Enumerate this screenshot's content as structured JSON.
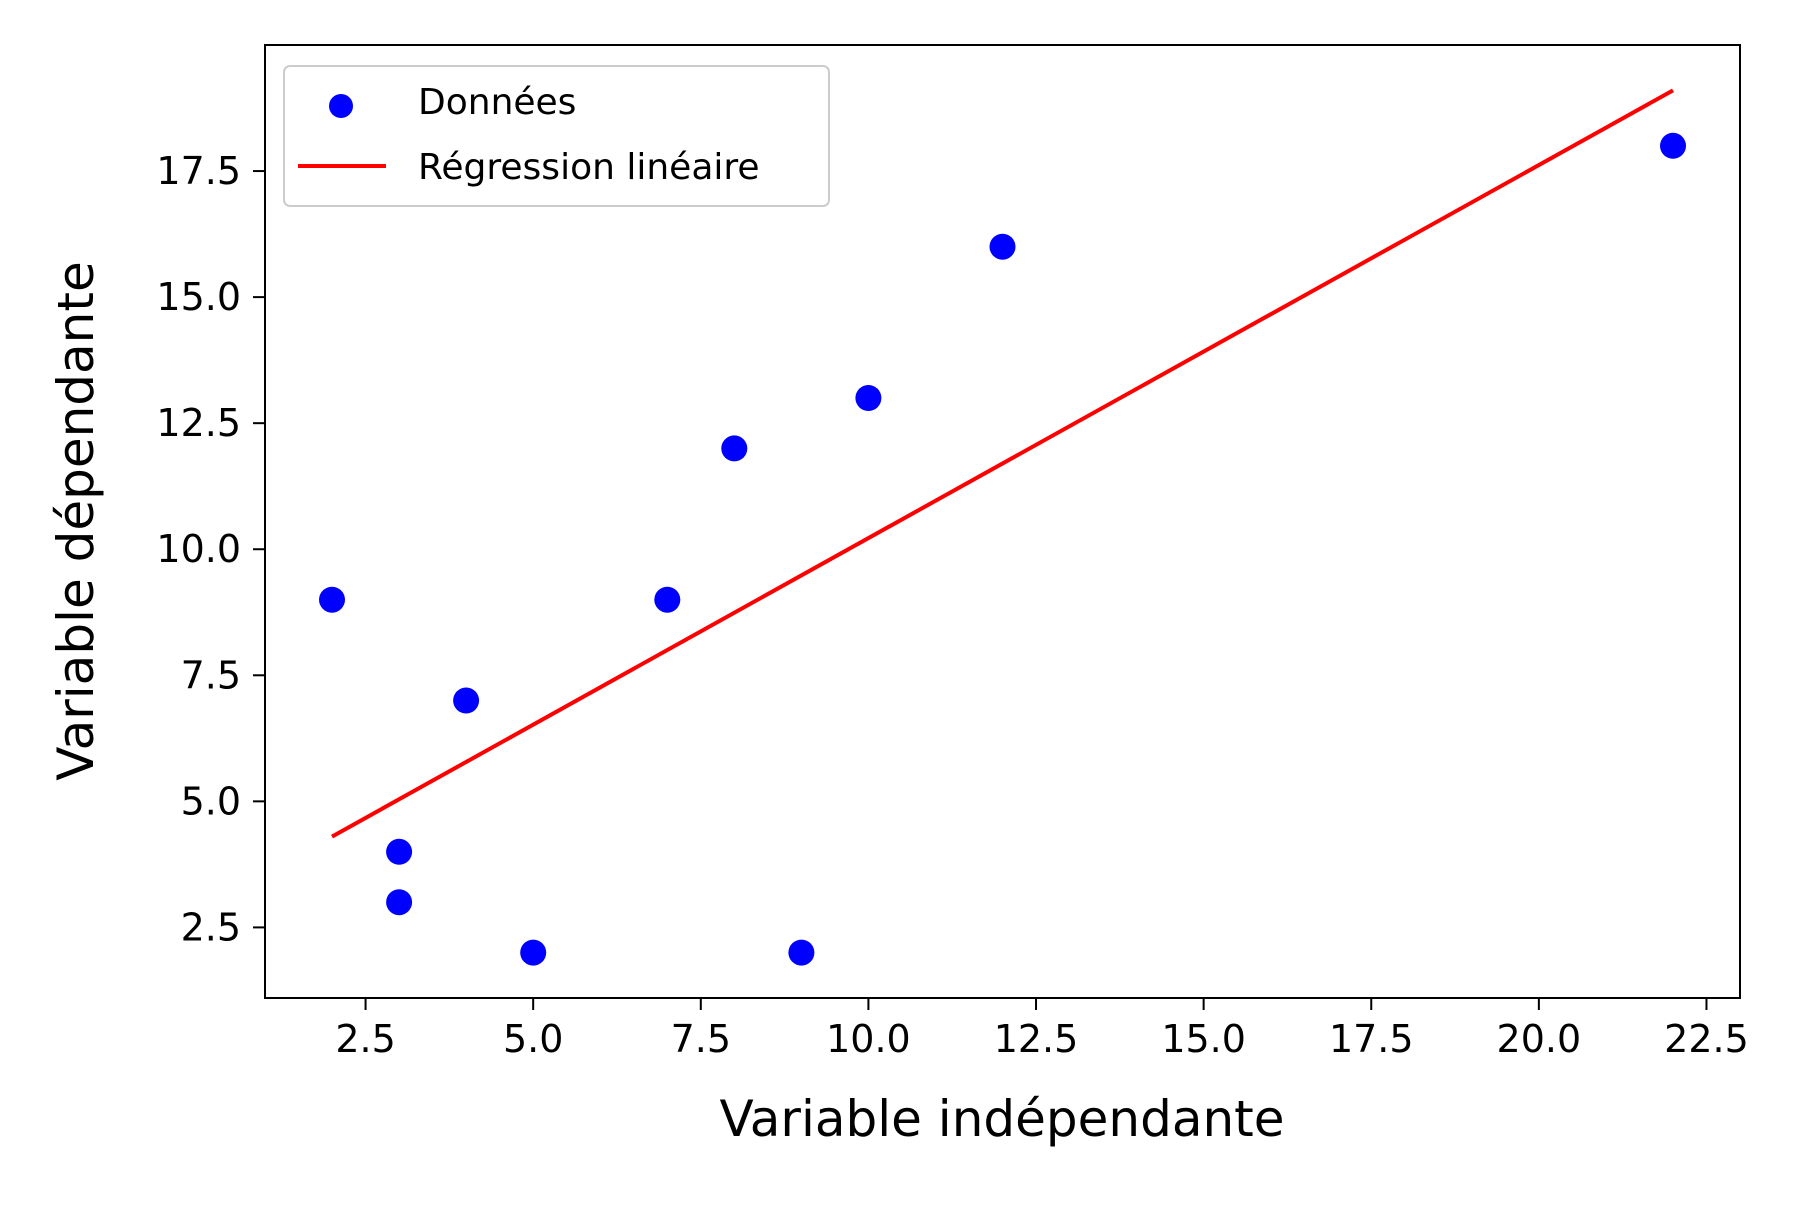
{
  "chart_data": {
    "type": "scatter",
    "xlabel": "Variable indépendante",
    "ylabel": "Variable dépendante",
    "xlim": [
      1.0,
      23.0
    ],
    "ylim": [
      1.1,
      20.0
    ],
    "xticks": [
      2.5,
      5.0,
      7.5,
      10.0,
      12.5,
      15.0,
      17.5,
      20.0,
      22.5
    ],
    "yticks": [
      2.5,
      5.0,
      7.5,
      10.0,
      12.5,
      15.0,
      17.5
    ],
    "grid": false,
    "legend_position": "upper-left",
    "series": [
      {
        "name": "Données",
        "kind": "scatter",
        "color": "#0000ff",
        "points": [
          {
            "x": 2,
            "y": 9
          },
          {
            "x": 3,
            "y": 4
          },
          {
            "x": 3,
            "y": 3
          },
          {
            "x": 4,
            "y": 7
          },
          {
            "x": 5,
            "y": 2
          },
          {
            "x": 7,
            "y": 9
          },
          {
            "x": 8,
            "y": 12
          },
          {
            "x": 9,
            "y": 2
          },
          {
            "x": 10,
            "y": 13
          },
          {
            "x": 12,
            "y": 16
          },
          {
            "x": 22,
            "y": 18
          }
        ]
      },
      {
        "name": "Régression linéaire",
        "kind": "line",
        "color": "#ff0000",
        "points": [
          {
            "x": 2,
            "y": 4.3
          },
          {
            "x": 22,
            "y": 19.1
          }
        ]
      }
    ]
  }
}
